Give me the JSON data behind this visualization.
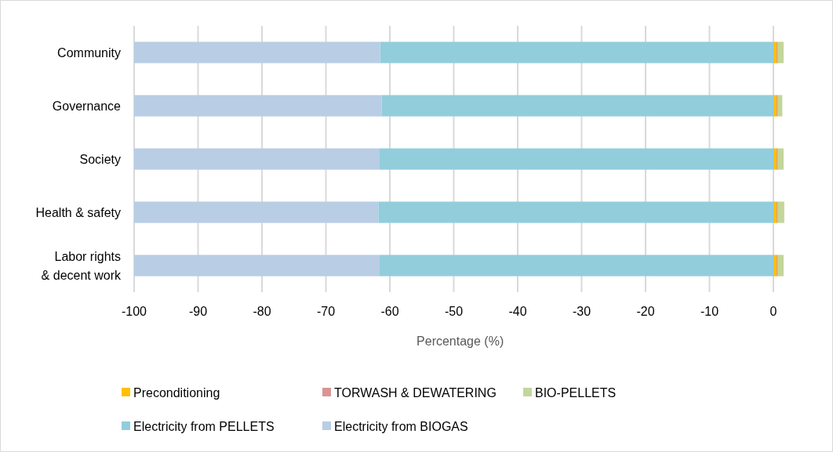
{
  "chart_data": {
    "type": "bar",
    "orientation": "horizontal",
    "stacked": true,
    "xlabel": "Percentage (%)",
    "categories": [
      "Community",
      "Governance",
      "Society",
      "Health & safety",
      "Labor rights & decent work"
    ],
    "series": [
      {
        "name": "Preconditioning",
        "color": "#ffc000",
        "values": [
          0.5,
          0.5,
          0.5,
          0.5,
          0.5
        ]
      },
      {
        "name": "TORWASH & DEWATERING",
        "color": "#d99594",
        "values": [
          0.2,
          0.2,
          0.2,
          0.2,
          0.2
        ]
      },
      {
        "name": "BIO-PELLETS",
        "color": "#c3d69b",
        "values": [
          0.9,
          0.7,
          0.9,
          1.0,
          0.9
        ]
      },
      {
        "name": "Electricity from PELLETS",
        "color": "#92cddc",
        "values": [
          -61.5,
          -61.3,
          -61.6,
          -61.8,
          -61.6
        ]
      },
      {
        "name": "Electricity from BIOGAS",
        "color": "#b9cde5",
        "values": [
          -38.5,
          -38.7,
          -38.4,
          -38.2,
          -38.4
        ]
      }
    ],
    "xlim": [
      -100,
      2
    ],
    "xticks": [
      -100,
      -90,
      -80,
      -70,
      -60,
      -50,
      -40,
      -30,
      -20,
      -10,
      0
    ],
    "grid": "x",
    "legend": "bottom"
  }
}
